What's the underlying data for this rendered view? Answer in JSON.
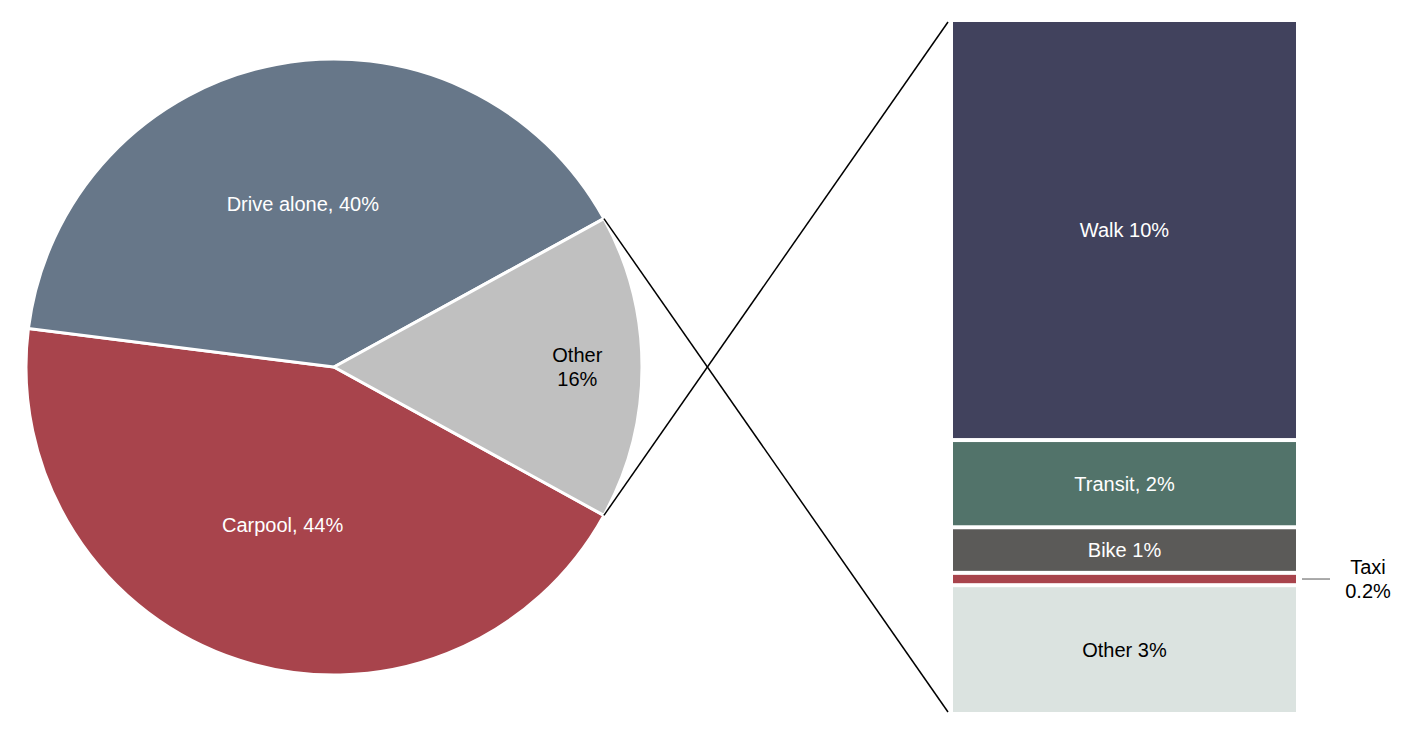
{
  "chart_data": [
    {
      "type": "pie",
      "categories": [
        "Carpool",
        "Drive alone",
        "Other"
      ],
      "values": [
        44,
        40,
        16
      ],
      "value_labels": [
        "Carpool, 44%",
        "Drive alone, 40%",
        "Other\n16%"
      ],
      "colors": [
        "#a8444c",
        "#677789",
        "#c0c0c0"
      ],
      "data_labels": true
    },
    {
      "type": "bar",
      "stacked": true,
      "categories": [
        "Walk",
        "Transit",
        "Bike",
        "Taxi",
        "Other"
      ],
      "values": [
        10,
        2,
        1,
        0.2,
        3
      ],
      "value_labels": [
        "Walk 10%",
        "Transit, 2%",
        "Bike 1%",
        "Taxi\n0.2%",
        "Other 3%"
      ],
      "colors": [
        "#41425d",
        "#52736a",
        "#5b5a58",
        "#a8444c",
        "#dbe3e0"
      ],
      "data_labels": true,
      "tick_labels": false
    }
  ]
}
